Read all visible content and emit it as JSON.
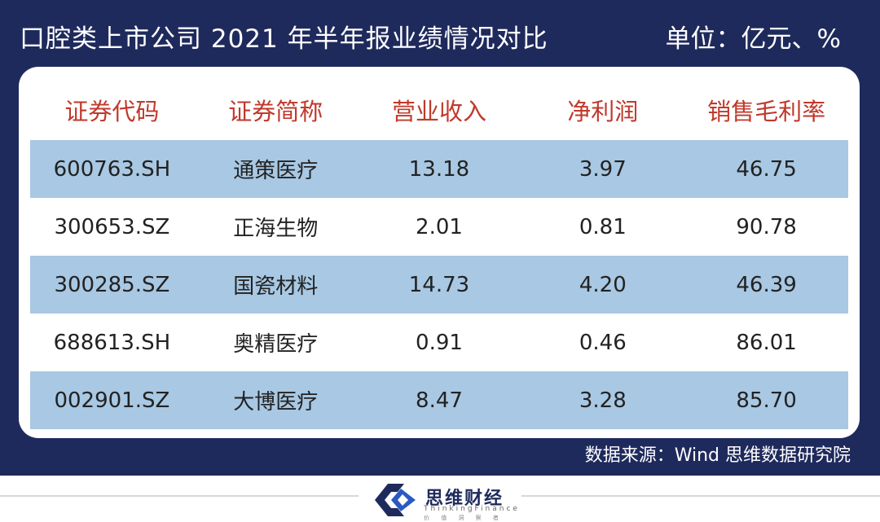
{
  "header": {
    "title": "口腔类上市公司 2021 年半年报业绩情况对比",
    "unit": "单位：亿元、%"
  },
  "chart_data": {
    "type": "table",
    "columns": [
      "证券代码",
      "证券简称",
      "营业收入",
      "净利润",
      "销售毛利率"
    ],
    "rows": [
      [
        "600763.SH",
        "通策医疗",
        "13.18",
        "3.97",
        "46.75"
      ],
      [
        "300653.SZ",
        "正海生物",
        "2.01",
        "0.81",
        "90.78"
      ],
      [
        "300285.SZ",
        "国瓷材料",
        "14.73",
        "4.20",
        "46.39"
      ],
      [
        "688613.SH",
        "奥精医疗",
        "0.91",
        "0.46",
        "86.01"
      ],
      [
        "002901.SZ",
        "大博医疗",
        "8.47",
        "3.28",
        "85.70"
      ]
    ]
  },
  "source": "数据来源：Wind  思维数据研究院",
  "logo": {
    "name": "思维财经",
    "en": "ThinkingFinance",
    "tag": "价 值 洞 察 者"
  },
  "colors": {
    "panel": "#1f2a5c",
    "header_text": "#c0392b",
    "row_band": "#a8c8e3",
    "brand_blue": "#2b59c3"
  }
}
